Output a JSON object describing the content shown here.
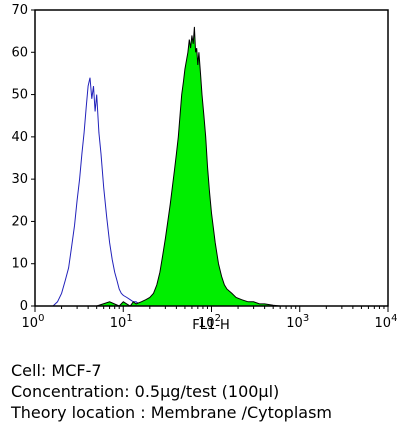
{
  "chart_data": {
    "type": "area",
    "xlabel": "FL1-H",
    "xscale": "log",
    "xlim": [
      1,
      10000
    ],
    "ylim": [
      0,
      70
    ],
    "x_tick_labels": [
      {
        "base": "10",
        "exp": "0"
      },
      {
        "base": "10",
        "exp": "1"
      },
      {
        "base": "10",
        "exp": "2"
      },
      {
        "base": "10",
        "exp": "3"
      },
      {
        "base": "10",
        "exp": "4"
      }
    ],
    "y_ticks": [
      0,
      10,
      20,
      30,
      40,
      50,
      60,
      70
    ],
    "series": [
      {
        "style": "outline",
        "color": "#2222bb",
        "x": [
          1.6,
          1.8,
          2.0,
          2.2,
          2.4,
          2.6,
          2.8,
          3.0,
          3.2,
          3.4,
          3.6,
          3.8,
          4.0,
          4.2,
          4.4,
          4.6,
          4.8,
          5.0,
          5.3,
          5.6,
          6.0,
          6.5,
          7.0,
          7.5,
          8.0,
          8.5,
          9.0,
          9.5,
          10,
          11,
          12,
          13,
          14,
          15,
          16,
          17,
          18,
          19,
          20
        ],
        "y": [
          0,
          1,
          3,
          6,
          9,
          14,
          19,
          25,
          30,
          36,
          41,
          47,
          52,
          54,
          49,
          52,
          46,
          50,
          41,
          36,
          28,
          21,
          15,
          11,
          8,
          6,
          4,
          3,
          2.5,
          2,
          1.5,
          1,
          1,
          0.5,
          0.5,
          0,
          0.5,
          0,
          0
        ]
      },
      {
        "style": "filled",
        "color": "#00ee00",
        "x": [
          5,
          7,
          9,
          10,
          12,
          13,
          14,
          16,
          18,
          20,
          22,
          24,
          26,
          28,
          30,
          32,
          34,
          36,
          38,
          40,
          42,
          44,
          46,
          48,
          50,
          52,
          54,
          56,
          58,
          60,
          62,
          64,
          66,
          68,
          70,
          72,
          75,
          78,
          82,
          86,
          90,
          95,
          100,
          110,
          120,
          130,
          140,
          150,
          170,
          190,
          220,
          260,
          300,
          350,
          400,
          500,
          600
        ],
        "y": [
          0,
          1,
          0,
          1,
          0,
          1,
          0.5,
          1,
          1.5,
          2,
          3,
          5,
          8,
          12,
          16,
          20,
          24,
          28,
          32,
          36,
          40,
          45,
          50,
          53,
          56,
          58,
          60,
          63,
          61,
          64,
          62,
          66,
          60,
          61,
          57,
          60,
          55,
          50,
          45,
          40,
          33,
          27,
          22,
          15,
          10,
          7,
          5,
          4,
          3,
          2,
          1.5,
          1,
          1,
          0.5,
          0.5,
          0.2,
          0
        ]
      }
    ]
  },
  "caption": {
    "cell": "Cell: MCF-7",
    "concentration": "Concentration: 0.5μg/test (100μl)",
    "location": "Theory location : Membrane /Cytoplasm"
  }
}
